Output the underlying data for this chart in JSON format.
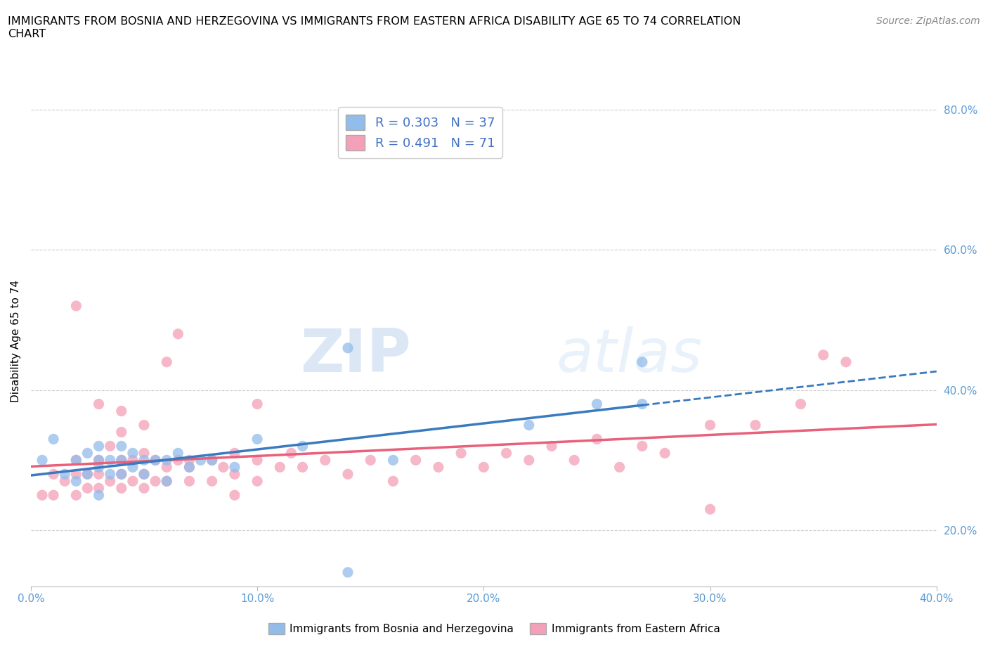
{
  "title": "IMMIGRANTS FROM BOSNIA AND HERZEGOVINA VS IMMIGRANTS FROM EASTERN AFRICA DISABILITY AGE 65 TO 74 CORRELATION\nCHART",
  "source": "Source: ZipAtlas.com",
  "ylabel": "Disability Age 65 to 74",
  "xlim": [
    0.0,
    0.4
  ],
  "ylim": [
    0.12,
    0.82
  ],
  "xticks": [
    0.0,
    0.1,
    0.2,
    0.3,
    0.4
  ],
  "yticks_right": [
    0.2,
    0.4,
    0.6,
    0.8
  ],
  "color_bosnia": "#92bcea",
  "color_eastern": "#f4a0b8",
  "trendline_bosnia_color": "#3a7abf",
  "trendline_eastern_color": "#e8607a",
  "R_bosnia": 0.303,
  "N_bosnia": 37,
  "R_eastern": 0.491,
  "N_eastern": 71,
  "legend_label_bosnia": "Immigrants from Bosnia and Herzegovina",
  "legend_label_eastern": "Immigrants from Eastern Africa",
  "watermark_zip": "ZIP",
  "watermark_atlas": "atlas",
  "bosnia_x": [
    0.005,
    0.01,
    0.015,
    0.02,
    0.02,
    0.025,
    0.025,
    0.03,
    0.03,
    0.03,
    0.03,
    0.035,
    0.035,
    0.04,
    0.04,
    0.04,
    0.045,
    0.045,
    0.05,
    0.05,
    0.055,
    0.06,
    0.06,
    0.065,
    0.07,
    0.075,
    0.08,
    0.09,
    0.1,
    0.12,
    0.14,
    0.16,
    0.22,
    0.25,
    0.27,
    0.27,
    0.14
  ],
  "bosnia_y": [
    0.3,
    0.33,
    0.28,
    0.3,
    0.27,
    0.28,
    0.31,
    0.29,
    0.3,
    0.32,
    0.25,
    0.28,
    0.3,
    0.28,
    0.3,
    0.32,
    0.29,
    0.31,
    0.28,
    0.3,
    0.3,
    0.27,
    0.3,
    0.31,
    0.29,
    0.3,
    0.3,
    0.29,
    0.33,
    0.32,
    0.14,
    0.3,
    0.35,
    0.38,
    0.38,
    0.44,
    0.46
  ],
  "eastern_x": [
    0.005,
    0.01,
    0.01,
    0.015,
    0.02,
    0.02,
    0.02,
    0.025,
    0.025,
    0.03,
    0.03,
    0.03,
    0.035,
    0.035,
    0.04,
    0.04,
    0.04,
    0.04,
    0.045,
    0.045,
    0.05,
    0.05,
    0.05,
    0.055,
    0.055,
    0.06,
    0.06,
    0.065,
    0.065,
    0.07,
    0.07,
    0.08,
    0.08,
    0.085,
    0.09,
    0.09,
    0.1,
    0.1,
    0.11,
    0.115,
    0.12,
    0.13,
    0.14,
    0.15,
    0.16,
    0.17,
    0.18,
    0.19,
    0.2,
    0.21,
    0.22,
    0.23,
    0.24,
    0.25,
    0.26,
    0.27,
    0.28,
    0.3,
    0.3,
    0.32,
    0.34,
    0.36,
    0.02,
    0.03,
    0.04,
    0.05,
    0.06,
    0.07,
    0.09,
    0.1,
    0.35
  ],
  "eastern_y": [
    0.25,
    0.25,
    0.28,
    0.27,
    0.25,
    0.28,
    0.3,
    0.26,
    0.28,
    0.26,
    0.28,
    0.3,
    0.27,
    0.32,
    0.26,
    0.28,
    0.3,
    0.34,
    0.27,
    0.3,
    0.26,
    0.28,
    0.31,
    0.27,
    0.3,
    0.27,
    0.29,
    0.3,
    0.48,
    0.27,
    0.3,
    0.27,
    0.3,
    0.29,
    0.28,
    0.31,
    0.27,
    0.3,
    0.29,
    0.31,
    0.29,
    0.3,
    0.28,
    0.3,
    0.27,
    0.3,
    0.29,
    0.31,
    0.29,
    0.31,
    0.3,
    0.32,
    0.3,
    0.33,
    0.29,
    0.32,
    0.31,
    0.35,
    0.23,
    0.35,
    0.38,
    0.44,
    0.52,
    0.38,
    0.37,
    0.35,
    0.44,
    0.29,
    0.25,
    0.38,
    0.45
  ],
  "bosnia_trendline_xmax": 0.27
}
